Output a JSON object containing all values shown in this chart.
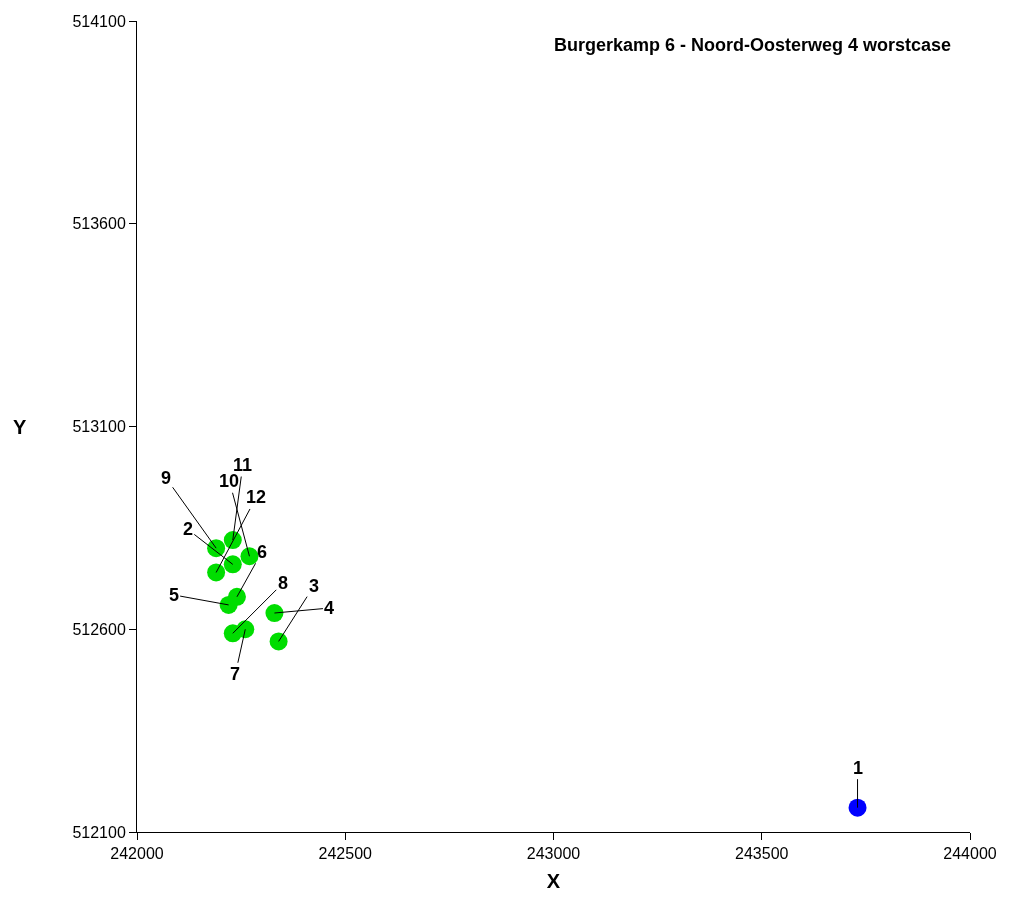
{
  "chart_data": {
    "type": "scatter",
    "title": "Burgerkamp 6 - Noord-Oosterweg 4 worstcase",
    "xlabel": "X",
    "ylabel": "Y",
    "series": [
      {
        "color": "#0000ff",
        "x": [
          243730
        ],
        "values": [
          512160
        ]
      },
      {
        "color": "#00dd00",
        "x": [
          242230,
          242340,
          242330,
          242220,
          242240,
          242260,
          242230,
          242190,
          242270,
          242230,
          242190
        ],
        "values": [
          512760,
          512570,
          512640,
          512660,
          512680,
          512600,
          512590,
          512800,
          512780,
          512820,
          512740
        ]
      }
    ],
    "annotations": [
      {
        "text": "1",
        "x": 243730,
        "y": 512160
      },
      {
        "text": "2",
        "x": 242230,
        "y": 512760
      },
      {
        "text": "3",
        "x": 242340,
        "y": 512570
      },
      {
        "text": "4",
        "x": 242330,
        "y": 512640
      },
      {
        "text": "5",
        "x": 242220,
        "y": 512660
      },
      {
        "text": "6",
        "x": 242240,
        "y": 512680
      },
      {
        "text": "7",
        "x": 242260,
        "y": 512600
      },
      {
        "text": "8",
        "x": 242230,
        "y": 512590
      },
      {
        "text": "9",
        "x": 242190,
        "y": 512800
      },
      {
        "text": "10",
        "x": 242270,
        "y": 512780
      },
      {
        "text": "11",
        "x": 242230,
        "y": 512820
      },
      {
        "text": "12",
        "x": 242190,
        "y": 512740
      }
    ],
    "xlim": [
      242000,
      244000
    ],
    "xticks": [
      242000,
      242500,
      243000,
      243500,
      244000
    ],
    "ylim": [
      512100,
      514100
    ],
    "yticks": [
      512100,
      512600,
      513100,
      513600,
      514100
    ],
    "marker": "circle"
  }
}
